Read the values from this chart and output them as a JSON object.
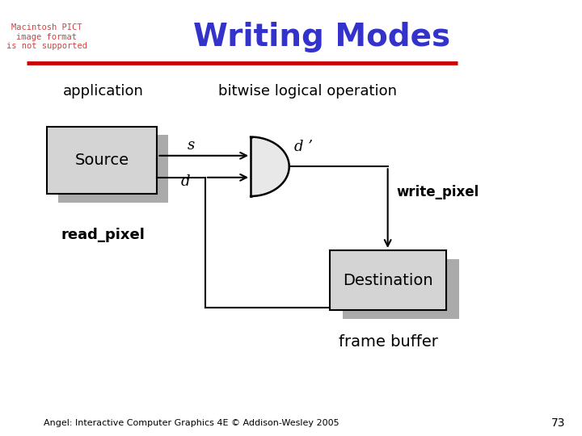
{
  "title": "Writing Modes",
  "title_color": "#3333cc",
  "title_fontsize": 28,
  "subtitle_pict_text": "Macintosh PICT\nimage format\nis not supported",
  "subtitle_pict_color": "#cc4444",
  "subtitle_pict_fontsize": 7.5,
  "label_application": "application",
  "label_bitwise": "bitwise logical operation",
  "label_source": "Source",
  "label_destination": "Destination",
  "label_s": "s",
  "label_d": "d",
  "label_dprime": "d ’",
  "label_write_pixel": "write_pixel",
  "label_read_pixel": "read_pixel",
  "label_frame_buffer": "frame buffer",
  "footer_text": "Angel: Interactive Computer Graphics 4E © Addison-Wesley 2005",
  "footer_page": "73",
  "box_fill": "#d4d4d4",
  "box_edge": "#000000",
  "shadow_color": "#aaaaaa",
  "background_color": "#ffffff",
  "red_line_color": "#cc0000",
  "red_line_lw": 3.5
}
